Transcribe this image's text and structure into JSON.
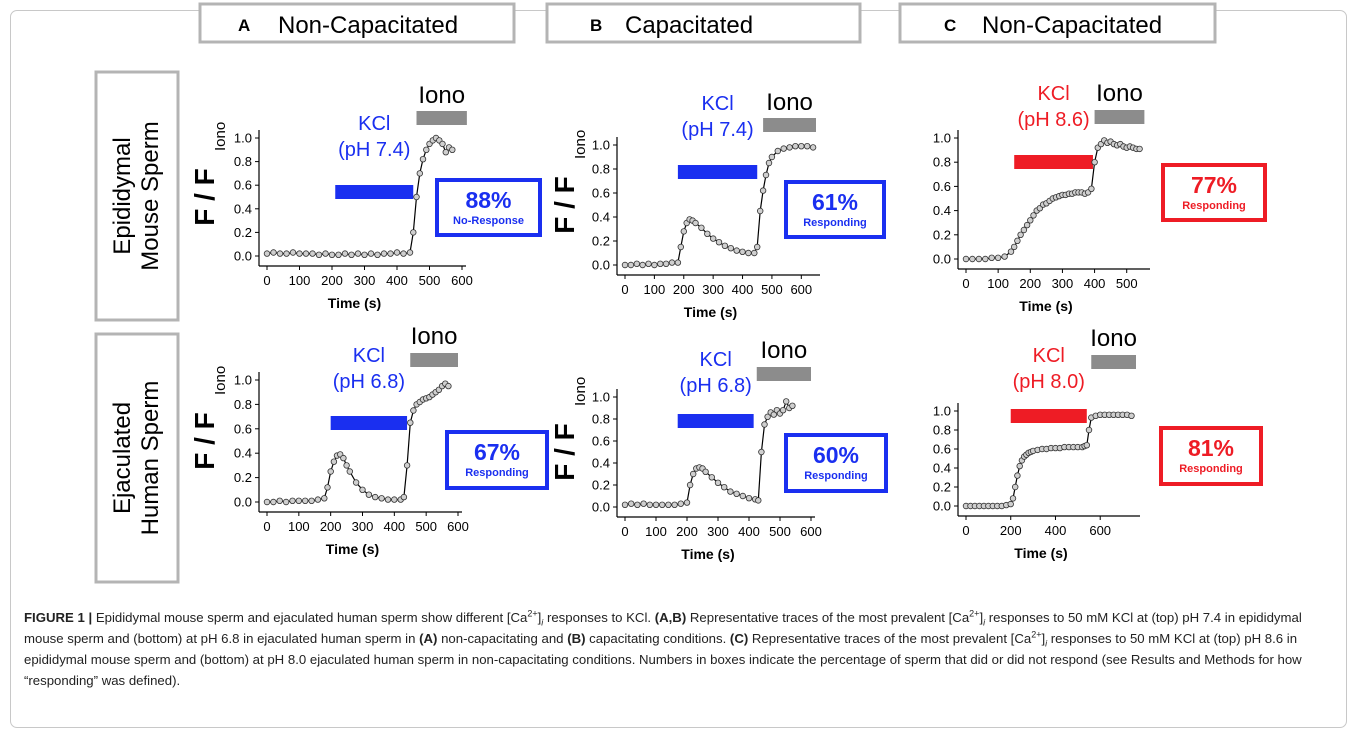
{
  "columns": [
    {
      "letter": "A",
      "title": "Non-Capacitated"
    },
    {
      "letter": "B",
      "title": "Capacitated"
    },
    {
      "letter": "C",
      "title": "Non-Capacitated"
    }
  ],
  "rows": [
    {
      "line1": "Epididymal",
      "line2": "Mouse Sperm"
    },
    {
      "line1": "Ejaculated",
      "line2": "Human Sperm"
    }
  ],
  "common": {
    "ylabel_main": "F / F",
    "ylabel_sub": "Iono",
    "xlabel": "Time (s)",
    "iono": "Iono",
    "kcl": "KCl"
  },
  "colors": {
    "blue": "#1a2ff0",
    "red": "#ee1c25",
    "gray": "#8c8c8c",
    "marker_fill": "#cfcfcf",
    "line": "#000000"
  },
  "chart_data": [
    {
      "type": "line",
      "panel": "A-top",
      "title": "",
      "xlabel": "Time (s)",
      "ylabel": "F / F Iono",
      "xlim": [
        0,
        600
      ],
      "ylim": [
        0,
        1.0
      ],
      "xticks": [
        0,
        100,
        200,
        300,
        400,
        500,
        600
      ],
      "yticks": [
        0.0,
        0.2,
        0.4,
        0.6,
        0.8,
        1.0
      ],
      "kcl_label": "(pH 7.4)",
      "kcl_color": "#1a2ff0",
      "kcl_range": [
        210,
        450
      ],
      "iono_range": [
        460,
        615
      ],
      "box_value": "88%",
      "box_text": "No-Response",
      "box_color": "#1a2ff0",
      "series": [
        {
          "x": [
            0,
            20,
            40,
            60,
            80,
            100,
            120,
            140,
            160,
            180,
            200,
            220,
            240,
            260,
            280,
            300,
            320,
            340,
            360,
            380,
            400,
            420,
            440,
            450,
            460,
            470,
            480,
            490,
            500,
            510,
            520,
            530,
            540,
            550,
            560,
            570
          ],
          "y": [
            0.02,
            0.03,
            0.02,
            0.02,
            0.03,
            0.02,
            0.02,
            0.02,
            0.01,
            0.02,
            0.01,
            0.01,
            0.02,
            0.01,
            0.02,
            0.01,
            0.02,
            0.01,
            0.02,
            0.02,
            0.03,
            0.02,
            0.03,
            0.2,
            0.5,
            0.7,
            0.82,
            0.9,
            0.95,
            0.98,
            1.0,
            0.98,
            0.95,
            0.88,
            0.92,
            0.9
          ]
        }
      ]
    },
    {
      "type": "line",
      "panel": "B-top",
      "title": "",
      "xlabel": "Time (s)",
      "ylabel": "F / F Iono",
      "xlim": [
        0,
        650
      ],
      "ylim": [
        0,
        1.0
      ],
      "xticks": [
        0,
        100,
        200,
        300,
        400,
        500,
        600
      ],
      "yticks": [
        0.0,
        0.2,
        0.4,
        0.6,
        0.8,
        1.0
      ],
      "kcl_label": "(pH 7.4)",
      "kcl_color": "#1a2ff0",
      "kcl_range": [
        180,
        450
      ],
      "iono_range": [
        470,
        650
      ],
      "box_value": "61%",
      "box_text": "Responding",
      "box_color": "#1a2ff0",
      "series": [
        {
          "x": [
            0,
            20,
            40,
            60,
            80,
            100,
            120,
            140,
            160,
            180,
            190,
            200,
            210,
            220,
            230,
            240,
            260,
            280,
            300,
            320,
            340,
            360,
            380,
            400,
            420,
            440,
            450,
            460,
            470,
            480,
            490,
            500,
            520,
            540,
            560,
            580,
            600,
            620,
            640
          ],
          "y": [
            0.0,
            0.0,
            0.01,
            0.0,
            0.01,
            0.0,
            0.01,
            0.01,
            0.02,
            0.02,
            0.15,
            0.28,
            0.35,
            0.38,
            0.37,
            0.35,
            0.31,
            0.26,
            0.22,
            0.19,
            0.16,
            0.14,
            0.12,
            0.11,
            0.1,
            0.1,
            0.15,
            0.45,
            0.62,
            0.75,
            0.85,
            0.9,
            0.95,
            0.97,
            0.98,
            0.99,
            0.99,
            0.99,
            0.98
          ]
        }
      ]
    },
    {
      "type": "line",
      "panel": "C-top",
      "title": "",
      "xlabel": "Time (s)",
      "ylabel": "",
      "xlim": [
        0,
        560
      ],
      "ylim": [
        0,
        1.0
      ],
      "xticks": [
        0,
        100,
        200,
        300,
        400,
        500
      ],
      "yticks": [
        0.0,
        0.2,
        0.4,
        0.6,
        0.8,
        1.0
      ],
      "kcl_label": "(pH 8.6)",
      "kcl_color": "#ee1c25",
      "kcl_range": [
        150,
        395
      ],
      "iono_range": [
        400,
        555
      ],
      "box_value": "77%",
      "box_text": "Responding",
      "box_color": "#ee1c25",
      "series": [
        {
          "x": [
            0,
            20,
            40,
            60,
            80,
            100,
            120,
            140,
            150,
            160,
            170,
            180,
            190,
            200,
            210,
            220,
            230,
            240,
            250,
            260,
            270,
            280,
            290,
            300,
            310,
            320,
            330,
            340,
            350,
            360,
            370,
            380,
            390,
            400,
            410,
            420,
            430,
            440,
            450,
            460,
            470,
            480,
            490,
            500,
            510,
            520,
            530,
            540
          ],
          "y": [
            0.0,
            0.0,
            0.0,
            0.0,
            0.01,
            0.01,
            0.02,
            0.06,
            0.1,
            0.15,
            0.2,
            0.24,
            0.28,
            0.32,
            0.36,
            0.4,
            0.42,
            0.45,
            0.46,
            0.48,
            0.5,
            0.51,
            0.52,
            0.53,
            0.53,
            0.54,
            0.54,
            0.55,
            0.55,
            0.55,
            0.54,
            0.55,
            0.58,
            0.8,
            0.92,
            0.95,
            0.98,
            0.96,
            0.97,
            0.95,
            0.94,
            0.95,
            0.93,
            0.92,
            0.93,
            0.92,
            0.91,
            0.91
          ]
        }
      ]
    },
    {
      "type": "line",
      "panel": "A-bottom",
      "title": "",
      "xlabel": "Time (s)",
      "ylabel": "F / F Iono",
      "xlim": [
        0,
        600
      ],
      "ylim": [
        0,
        1.0
      ],
      "xticks": [
        0,
        100,
        200,
        300,
        400,
        500,
        600
      ],
      "yticks": [
        0.0,
        0.2,
        0.4,
        0.6,
        0.8,
        1.0
      ],
      "kcl_label": "(pH 6.8)",
      "kcl_color": "#1a2ff0",
      "kcl_range": [
        200,
        440
      ],
      "iono_range": [
        450,
        600
      ],
      "box_value": "67%",
      "box_text": "Responding",
      "box_color": "#1a2ff0",
      "series": [
        {
          "x": [
            0,
            20,
            40,
            60,
            80,
            100,
            120,
            140,
            160,
            180,
            190,
            200,
            210,
            220,
            230,
            240,
            250,
            260,
            280,
            300,
            320,
            340,
            360,
            380,
            400,
            420,
            430,
            440,
            450,
            460,
            470,
            480,
            490,
            500,
            510,
            520,
            530,
            540,
            550,
            560,
            570
          ],
          "y": [
            0.0,
            0.0,
            0.01,
            0.0,
            0.01,
            0.01,
            0.01,
            0.01,
            0.02,
            0.03,
            0.12,
            0.25,
            0.33,
            0.38,
            0.39,
            0.36,
            0.3,
            0.25,
            0.16,
            0.1,
            0.06,
            0.04,
            0.03,
            0.02,
            0.02,
            0.02,
            0.04,
            0.3,
            0.65,
            0.75,
            0.8,
            0.82,
            0.84,
            0.85,
            0.86,
            0.88,
            0.9,
            0.92,
            0.95,
            0.97,
            0.95
          ]
        }
      ]
    },
    {
      "type": "line",
      "panel": "B-bottom",
      "title": "",
      "xlabel": "Time (s)",
      "ylabel": "F / F Iono",
      "xlim": [
        0,
        600
      ],
      "ylim": [
        0,
        1.0
      ],
      "xticks": [
        0,
        100,
        200,
        300,
        400,
        500,
        600
      ],
      "yticks": [
        0.0,
        0.2,
        0.4,
        0.6,
        0.8,
        1.0
      ],
      "kcl_label": "(pH 6.8)",
      "kcl_color": "#1a2ff0",
      "kcl_range": [
        170,
        415
      ],
      "iono_range": [
        425,
        600
      ],
      "box_value": "60%",
      "box_text": "Responding",
      "box_color": "#1a2ff0",
      "series": [
        {
          "x": [
            0,
            20,
            40,
            60,
            80,
            100,
            120,
            140,
            160,
            180,
            200,
            210,
            220,
            230,
            240,
            250,
            260,
            280,
            300,
            320,
            340,
            360,
            380,
            400,
            420,
            430,
            440,
            450,
            460,
            470,
            480,
            490,
            500,
            510,
            520,
            530,
            540
          ],
          "y": [
            0.02,
            0.03,
            0.02,
            0.03,
            0.02,
            0.02,
            0.02,
            0.02,
            0.02,
            0.03,
            0.04,
            0.2,
            0.3,
            0.35,
            0.36,
            0.35,
            0.32,
            0.27,
            0.22,
            0.18,
            0.14,
            0.12,
            0.1,
            0.08,
            0.07,
            0.06,
            0.5,
            0.75,
            0.82,
            0.86,
            0.84,
            0.88,
            0.85,
            0.88,
            0.96,
            0.9,
            0.92
          ]
        }
      ]
    },
    {
      "type": "line",
      "panel": "C-bottom",
      "title": "",
      "xlabel": "Time (s)",
      "ylabel": "",
      "xlim": [
        0,
        760
      ],
      "ylim": [
        0,
        1.0
      ],
      "xticks": [
        0,
        200,
        400,
        600
      ],
      "yticks": [
        0.0,
        0.2,
        0.4,
        0.6,
        0.8,
        1.0
      ],
      "kcl_label": "(pH 8.0)",
      "kcl_color": "#ee1c25",
      "kcl_range": [
        200,
        540
      ],
      "iono_range": [
        560,
        760
      ],
      "box_value": "81%",
      "box_text": "Responding",
      "box_color": "#ee1c25",
      "series": [
        {
          "x": [
            0,
            20,
            40,
            60,
            80,
            100,
            120,
            140,
            160,
            180,
            200,
            210,
            220,
            230,
            240,
            250,
            260,
            270,
            280,
            290,
            300,
            320,
            340,
            360,
            380,
            400,
            420,
            440,
            460,
            480,
            500,
            520,
            530,
            540,
            550,
            560,
            580,
            600,
            620,
            640,
            660,
            680,
            700,
            720,
            740
          ],
          "y": [
            0.0,
            0.0,
            0.0,
            0.0,
            0.0,
            0.0,
            0.0,
            0.0,
            0.0,
            0.01,
            0.02,
            0.08,
            0.2,
            0.32,
            0.42,
            0.48,
            0.52,
            0.54,
            0.56,
            0.57,
            0.58,
            0.59,
            0.6,
            0.6,
            0.61,
            0.61,
            0.61,
            0.62,
            0.62,
            0.62,
            0.62,
            0.62,
            0.63,
            0.64,
            0.8,
            0.93,
            0.95,
            0.96,
            0.96,
            0.96,
            0.96,
            0.96,
            0.96,
            0.96,
            0.95
          ]
        }
      ]
    }
  ],
  "caption": {
    "label": "FIGURE 1 |",
    "s1a": " Epididymal mouse sperm and ejaculated human sperm show different [Ca",
    "s1b": "2+",
    "s1c": "]",
    "s1d": "i",
    "s1e": " responses to KCl. ",
    "b1": "(A,B)",
    "s2": " Representative traces of the most prevalent [Ca",
    "s2b": "2+",
    "s2c": "]",
    "s2d": "i",
    "s2e": " responses to 50 mM KCl at (top) pH 7.4 in epididymal mouse sperm and (bottom) at pH 6.8 in ejaculated human sperm in ",
    "b2": "(A)",
    "s3": " non-capacitating and ",
    "b3": "(B)",
    "s4": " capacitating conditions. ",
    "b4": "(C)",
    "s5": " Representative traces of the most prevalent [Ca",
    "s5b": "2+",
    "s5c": "]",
    "s5d": "i",
    "s5e": " responses to 50 mM KCl at (top) pH 8.6 in epididymal mouse sperm and (bottom) at pH 8.0 ejaculated human sperm in non-capacitating conditions. Numbers in boxes indicate the percentage of sperm that did or did not respond (see Results and Methods for how “responding” was defined)."
  }
}
